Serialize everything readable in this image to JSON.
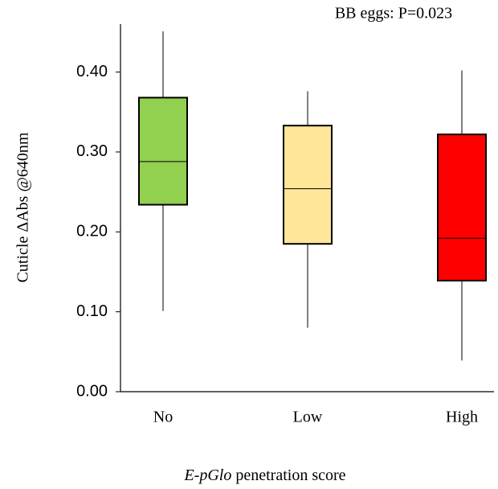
{
  "chart_data": {
    "type": "box",
    "title": "BB eggs: P=0.023",
    "ylabel": "Cuticle  ΔAbs @640nm",
    "xlabel": {
      "italic": "E-pGlo",
      "text": "penetration score"
    },
    "categories": [
      "No",
      "Low",
      "High"
    ],
    "colors": [
      "#92d050",
      "#ffe699",
      "#ff0000"
    ],
    "boxes": [
      {
        "min": 0.101,
        "q1": 0.234,
        "median": 0.288,
        "q3": 0.368,
        "max": 0.451
      },
      {
        "min": 0.08,
        "q1": 0.185,
        "median": 0.254,
        "q3": 0.333,
        "max": 0.376
      },
      {
        "min": 0.039,
        "q1": 0.139,
        "median": 0.192,
        "q3": 0.322,
        "max": 0.402
      }
    ],
    "ylim": [
      0,
      0.46
    ],
    "yticks": [
      {
        "value": 0,
        "label": "0.00"
      },
      {
        "value": 0.1,
        "label": "0.10"
      },
      {
        "value": 0.2,
        "label": "0.20"
      },
      {
        "value": 0.3,
        "label": "0.30"
      },
      {
        "value": 0.4,
        "label": "0.40"
      }
    ]
  }
}
